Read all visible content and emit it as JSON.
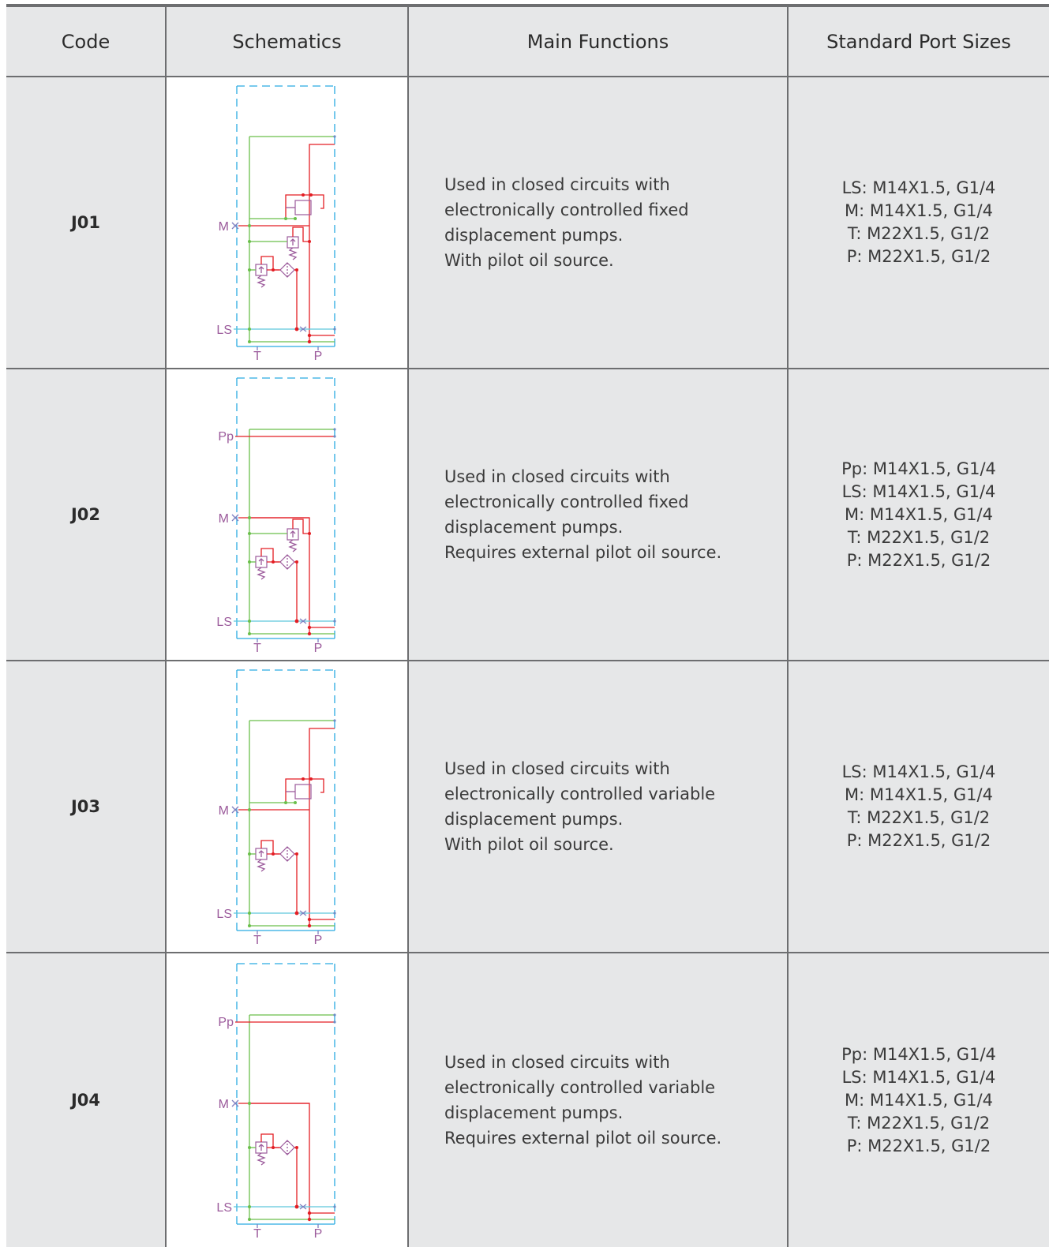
{
  "table": {
    "headers": [
      "Code",
      "Schematics",
      "Main Functions",
      "Standard Port Sizes"
    ],
    "rows": [
      {
        "code": "J01",
        "schematic": {
          "top_port": "",
          "ports": [
            "M",
            "LS"
          ],
          "bottom_ports": [
            "T",
            "P"
          ]
        },
        "functions": [
          "Used in closed circuits with",
          "electronically controlled fixed",
          "displacement pumps.",
          "With pilot oil source."
        ],
        "ports": [
          "LS: M14X1.5, G1/4",
          "M: M14X1.5, G1/4",
          "T: M22X1.5, G1/2",
          "P: M22X1.5, G1/2"
        ]
      },
      {
        "code": "J02",
        "schematic": {
          "top_port": "Pp",
          "ports": [
            "M",
            "LS"
          ],
          "bottom_ports": [
            "T",
            "P"
          ]
        },
        "functions": [
          "Used in closed circuits with",
          "electronically controlled fixed",
          "displacement pumps.",
          "Requires external pilot oil source."
        ],
        "ports": [
          "Pp: M14X1.5, G1/4",
          "LS: M14X1.5, G1/4",
          "M: M14X1.5, G1/4",
          "T: M22X1.5, G1/2",
          "P: M22X1.5, G1/2"
        ]
      },
      {
        "code": "J03",
        "schematic": {
          "top_port": "",
          "ports": [
            "M",
            "LS"
          ],
          "bottom_ports": [
            "T",
            "P"
          ]
        },
        "functions": [
          "Used in closed circuits with",
          "electronically controlled variable",
          "displacement pumps.",
          "With pilot oil source."
        ],
        "ports": [
          "LS: M14X1.5, G1/4",
          "M: M14X1.5, G1/4",
          "T: M22X1.5, G1/2",
          "P: M22X1.5, G1/2"
        ]
      },
      {
        "code": "J04",
        "schematic": {
          "top_port": "Pp",
          "ports": [
            "M",
            "LS"
          ],
          "bottom_ports": [
            "T",
            "P"
          ]
        },
        "functions": [
          "Used in closed circuits with",
          "electronically controlled variable",
          "displacement pumps.",
          "Requires external pilot oil source."
        ],
        "ports": [
          "Pp: M14X1.5, G1/4",
          "LS: M14X1.5, G1/4",
          "M: M14X1.5, G1/4",
          "T: M22X1.5, G1/2",
          "P: M22X1.5, G1/2"
        ]
      }
    ]
  },
  "colors": {
    "cell_background": "#e6e7e8",
    "grid_line": "#6d6e70",
    "boundary_line": "#29abe2",
    "tank_line": "#6abf4b",
    "pressure_line": "#e31e24",
    "signal_line": "#5ec6dc",
    "component": "#9b5a9b"
  },
  "icons": [
    "hydraulic-schematic-icon",
    "relief-valve-icon",
    "filter-icon",
    "orifice-icon"
  ]
}
